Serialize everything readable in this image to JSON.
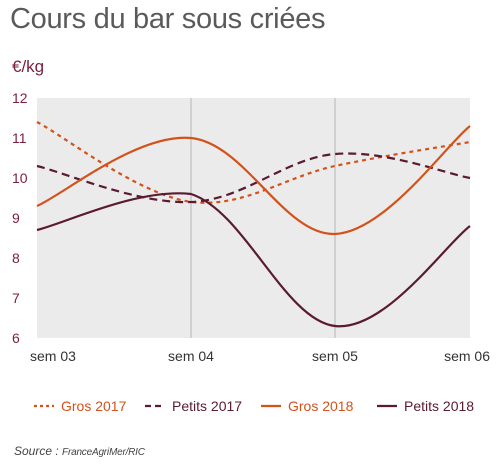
{
  "title": "Cours du bar sous criées",
  "unit_label": "€/kg",
  "source_label": "Source :",
  "source_name": "FranceAgriMer/RIC",
  "chart_data": {
    "type": "line",
    "title": "Cours du bar sous criées",
    "ylabel": "€/kg",
    "xlabel": "",
    "categories": [
      "sem 03",
      "sem 04",
      "sem 05",
      "sem 06"
    ],
    "ylim": [
      6,
      12
    ],
    "yticks": [
      6,
      7,
      8,
      9,
      10,
      11,
      12
    ],
    "grid": "vertical",
    "legend_position": "bottom",
    "series": [
      {
        "name": "Gros 2017",
        "color": "#d2521a",
        "style": "dotted",
        "values": [
          11.4,
          9.4,
          10.3,
          10.9
        ]
      },
      {
        "name": "Petits 2017",
        "color": "#5a1a30",
        "style": "dashed",
        "values": [
          10.3,
          9.4,
          10.6,
          10.0
        ]
      },
      {
        "name": "Gros 2018",
        "color": "#d2521a",
        "style": "solid",
        "values": [
          9.3,
          11.0,
          8.6,
          11.3
        ]
      },
      {
        "name": "Petits 2018",
        "color": "#5a1a30",
        "style": "solid",
        "values": [
          8.7,
          9.6,
          6.3,
          8.8
        ]
      }
    ]
  }
}
